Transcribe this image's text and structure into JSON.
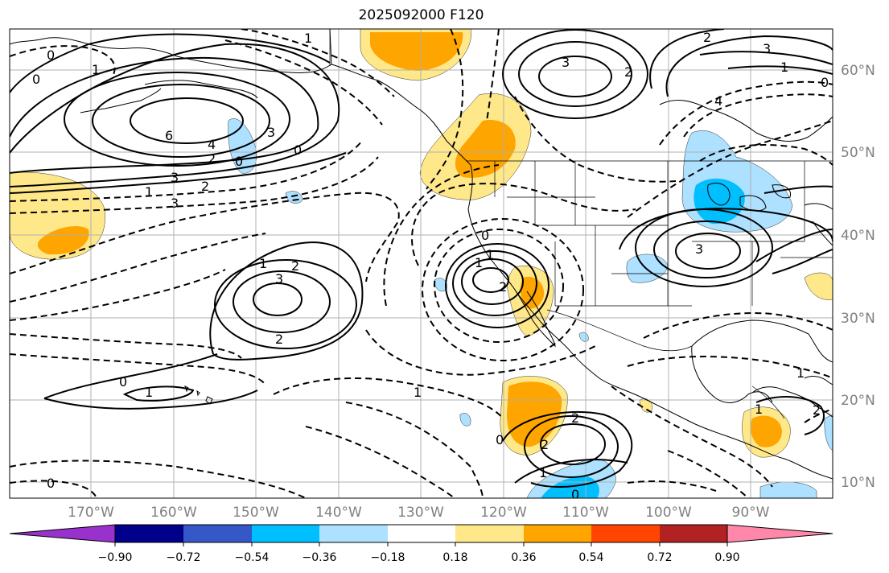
{
  "title": "2025092000 F120",
  "map": {
    "lat_ticks": [
      "60°N",
      "50°N",
      "40°N",
      "30°N",
      "20°N",
      "10°N"
    ],
    "lon_ticks": [
      "170°W",
      "160°W",
      "150°W",
      "140°W",
      "130°W",
      "120°W",
      "110°W",
      "100°W",
      "90°W"
    ],
    "colors": {
      "pos_light": "#ffe88a",
      "pos_mid": "#ffa500",
      "neg_light": "#aee0ff",
      "neg_mid": "#00bfff",
      "grid": "#b0b0b0",
      "frame": "#000000"
    },
    "contour_labels": [
      "0",
      "1",
      "2",
      "3",
      "4",
      "6",
      "0",
      "1",
      "2",
      "3",
      "0",
      "1",
      "2",
      "3",
      "0",
      "1",
      "2",
      "3",
      "1",
      "1",
      "2",
      "0",
      "1",
      "2",
      "0",
      "1",
      "3",
      "2",
      "0",
      "1",
      "3",
      "4",
      "0",
      "2",
      "1",
      "0",
      "1",
      "2",
      "0",
      "1",
      "3",
      "2"
    ]
  },
  "colorbar": {
    "colors": [
      "#9932cc",
      "#00008b",
      "#3557c8",
      "#00bfff",
      "#aee0ff",
      "#ffffff",
      "#ffe88a",
      "#ffa500",
      "#ff4500",
      "#b22222",
      "#ff88aa"
    ],
    "tick_labels": [
      "−0.90",
      "−0.72",
      "−0.54",
      "−0.36",
      "−0.18",
      "0.18",
      "0.36",
      "0.54",
      "0.72",
      "0.90"
    ]
  }
}
